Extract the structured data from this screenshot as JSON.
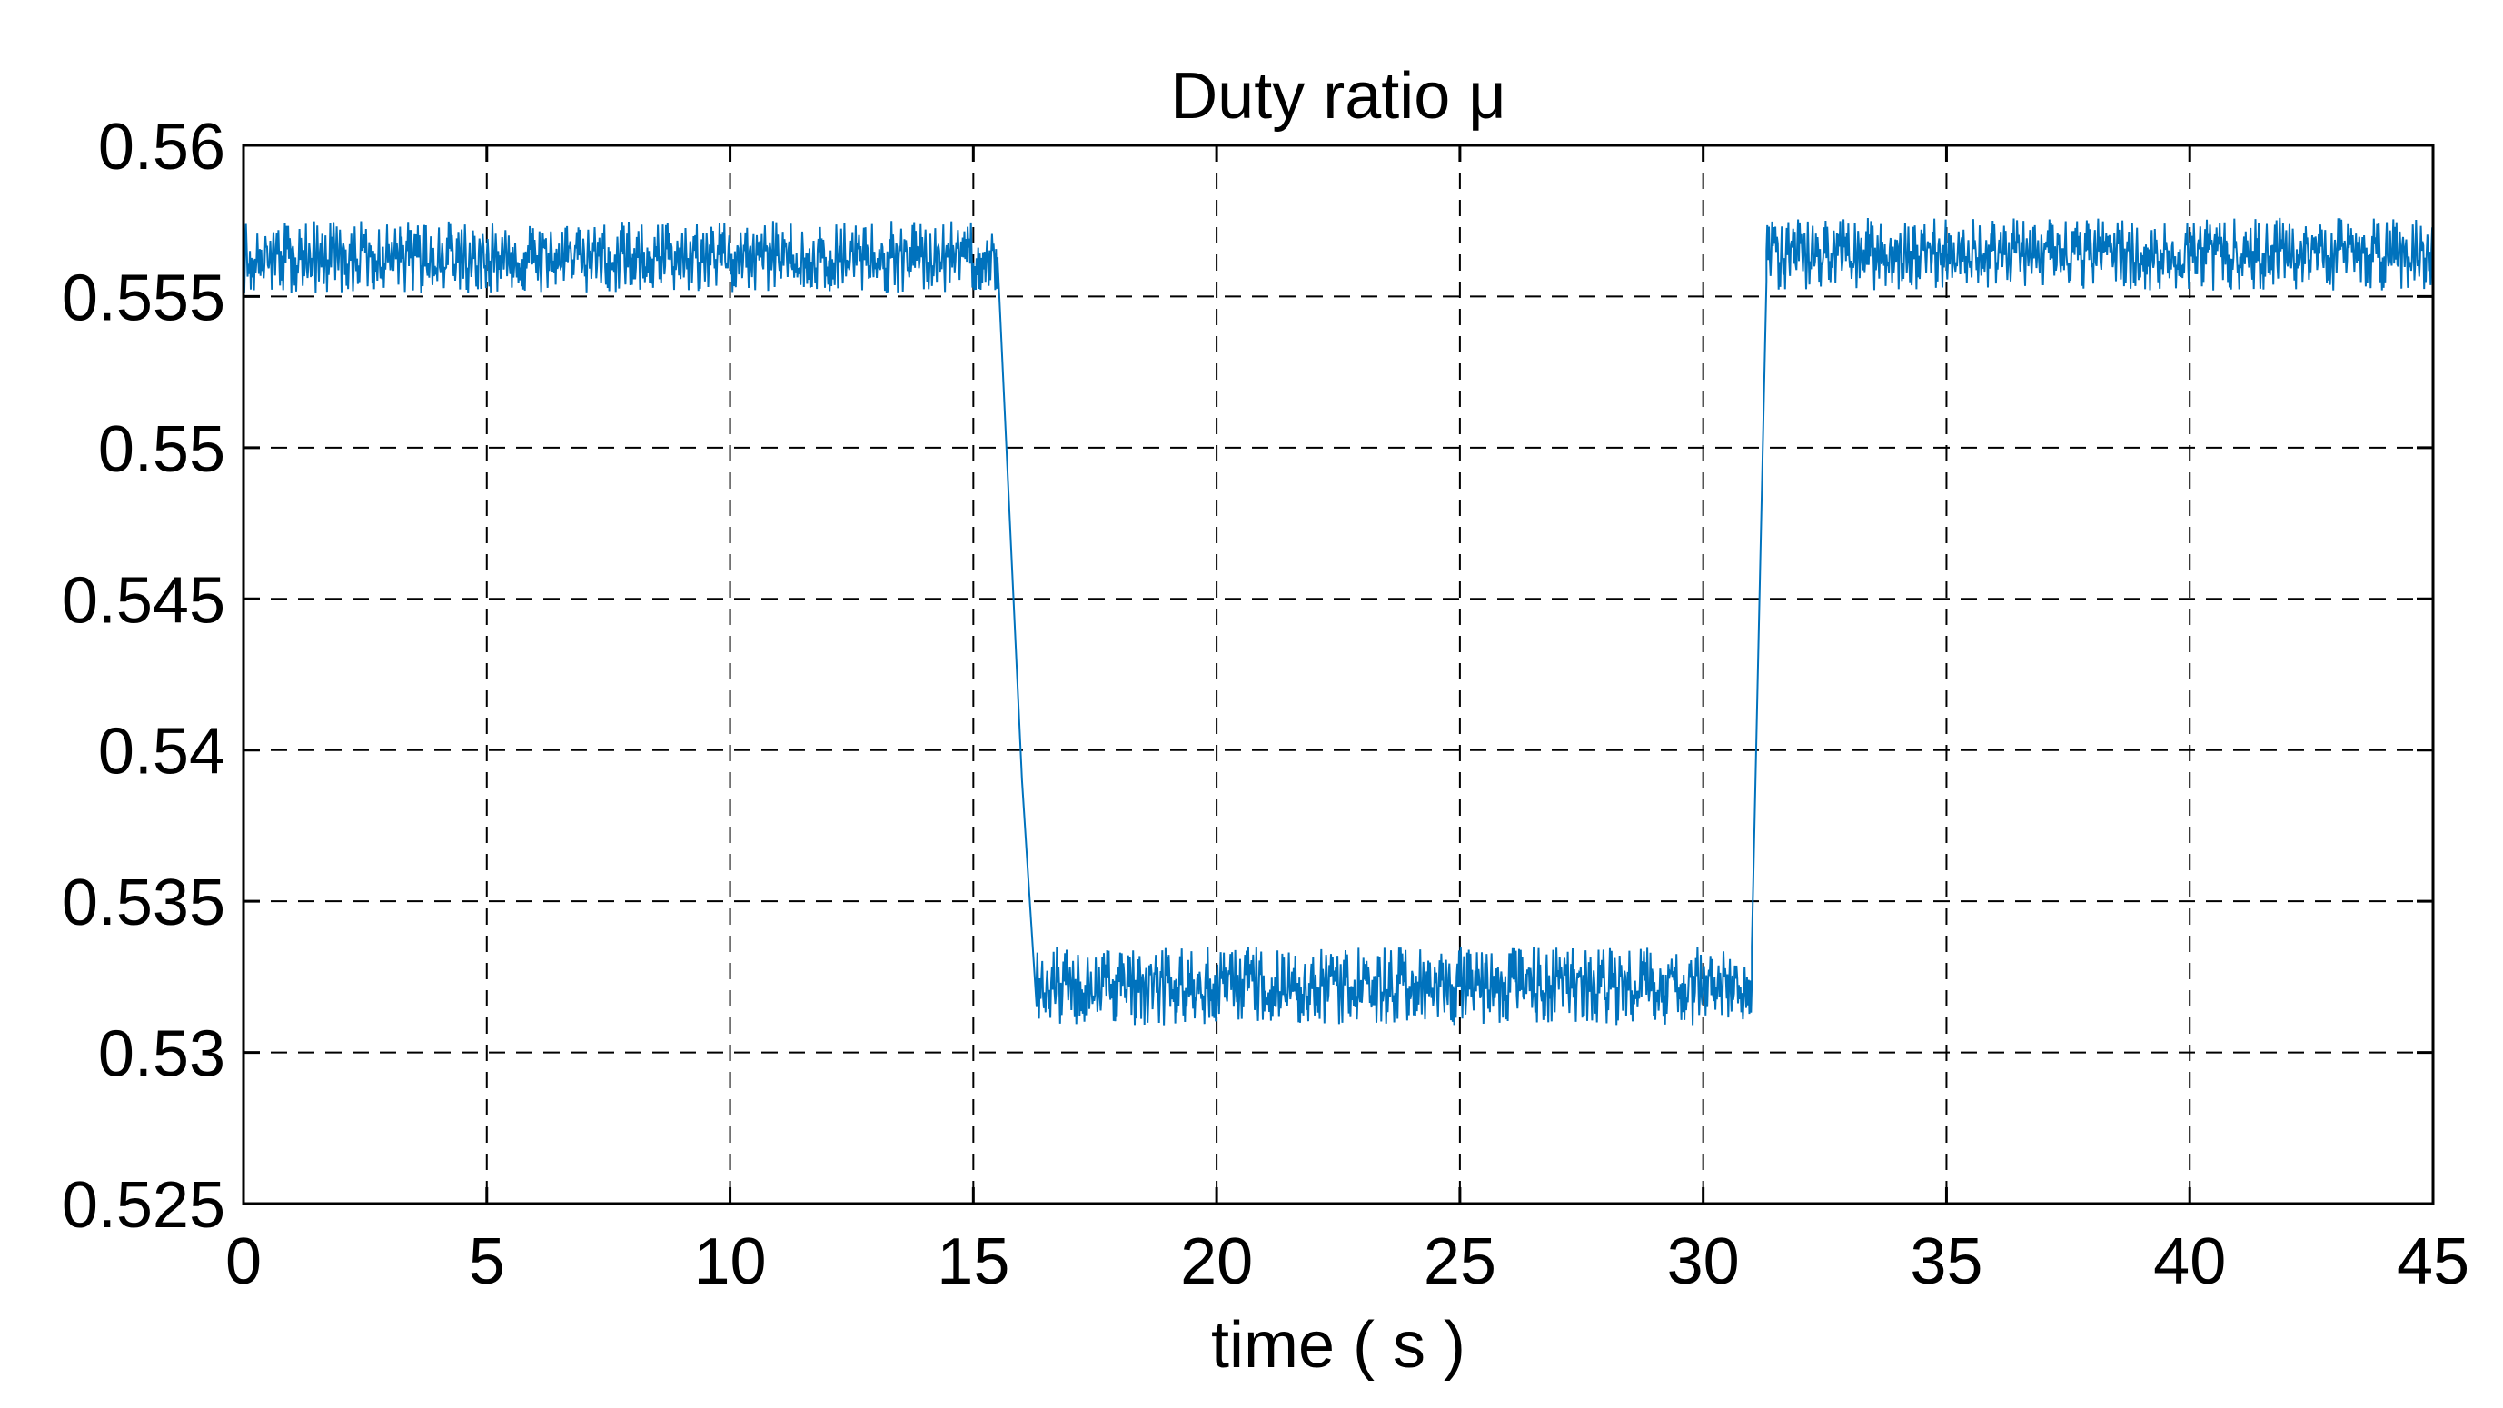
{
  "chart_data": {
    "type": "line",
    "title": "Duty ratio μ",
    "xlabel": "time ( s )",
    "ylabel": "",
    "xlim": [
      0,
      45
    ],
    "ylim": [
      0.525,
      0.56
    ],
    "xticks": [
      0,
      5,
      10,
      15,
      20,
      25,
      30,
      35,
      40,
      45
    ],
    "xtick_labels": [
      "0",
      "5",
      "10",
      "15",
      "20",
      "25",
      "30",
      "35",
      "40",
      "45"
    ],
    "yticks": [
      0.525,
      0.53,
      0.535,
      0.54,
      0.545,
      0.55,
      0.555,
      0.56
    ],
    "ytick_labels": [
      "0.525",
      "0.53",
      "0.535",
      "0.54",
      "0.545",
      "0.55",
      "0.555",
      "0.56"
    ],
    "grid": true,
    "series": [
      {
        "color": "#0072BD",
        "segments": [
          {
            "x_start": 0,
            "x_end": 15.5,
            "mean": 0.5563,
            "noise_amplitude": 0.0012
          },
          {
            "x_start": 15.5,
            "x_end": 16.0,
            "from": 0.5562,
            "to": 0.539
          },
          {
            "x_start": 16.0,
            "x_end": 16.3,
            "from": 0.539,
            "to": 0.5315
          },
          {
            "x_start": 16.3,
            "x_end": 31.0,
            "mean": 0.5322,
            "noise_amplitude": 0.0013
          },
          {
            "x_start": 31.0,
            "x_end": 31.3,
            "from": 0.5335,
            "to": 0.5555
          },
          {
            "x_start": 31.3,
            "x_end": 45,
            "mean": 0.5564,
            "noise_amplitude": 0.0012
          }
        ]
      }
    ]
  },
  "colors": {
    "series": "#0072BD",
    "grid": "#000000",
    "frame": "#000000"
  }
}
